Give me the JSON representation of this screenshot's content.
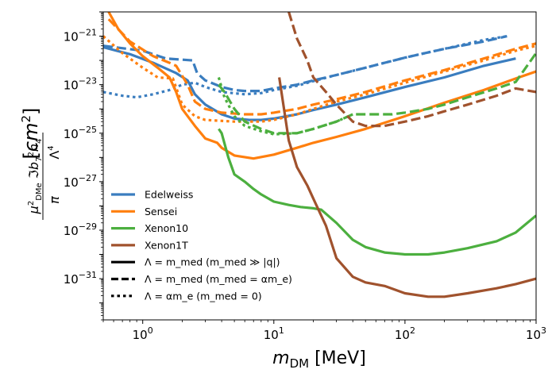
{
  "chart_data": {
    "type": "line",
    "xscale": "log",
    "yscale": "log",
    "xlim": [
      0.5,
      1000
    ],
    "ylim": [
      2e-33,
      1e-20
    ],
    "xlabel": "m_DM [MeV]",
    "ylabel": "μ²_DMe ℑb₇²h₄ / (π Λ⁴)  [cm²]",
    "x_tick_labels": [
      {
        "value": 1,
        "label": "10^0"
      },
      {
        "value": 10,
        "label": "10^1"
      },
      {
        "value": 100,
        "label": "10^2"
      },
      {
        "value": 1000,
        "label": "10^3"
      }
    ],
    "y_tick_labels": [
      {
        "value": 1e-21,
        "label": "10^-21"
      },
      {
        "value": 1e-23,
        "label": "10^-23"
      },
      {
        "value": 1e-25,
        "label": "10^-25"
      },
      {
        "value": 1e-27,
        "label": "10^-27"
      },
      {
        "value": 1e-29,
        "label": "10^-29"
      },
      {
        "value": 1e-31,
        "label": "10^-31"
      }
    ],
    "colors": {
      "Edelweiss": "#3a7dbf",
      "Sensei": "#ff7f0e",
      "Xenon10": "#4caf3f",
      "Xenon1T": "#a0522d"
    },
    "legend": {
      "placement": "lower-left",
      "experiments": [
        "Edelweiss",
        "Sensei",
        "Xenon10",
        "Xenon1T"
      ],
      "styles": [
        {
          "style": "solid",
          "label": "Λ = m_med (m_med ≫ |q|)"
        },
        {
          "style": "dashed",
          "label": "Λ = m_med (m_med = αm_e)"
        },
        {
          "style": "dotted",
          "label": "Λ = αm_e  (m_med = 0)"
        }
      ]
    },
    "series": [
      {
        "name": "Edelweiss",
        "style": "solid",
        "points": [
          [
            0.5,
            3.5e-22
          ],
          [
            0.8,
            1.8e-22
          ],
          [
            1.2,
            8e-23
          ],
          [
            1.8,
            3e-23
          ],
          [
            2.2,
            1.5e-23
          ],
          [
            2.5,
            4e-24
          ],
          [
            3,
            1.5e-24
          ],
          [
            4,
            6e-25
          ],
          [
            5,
            4e-25
          ],
          [
            6.5,
            3.5e-25
          ],
          [
            8,
            3.5e-25
          ],
          [
            10,
            4e-25
          ],
          [
            15,
            6e-25
          ],
          [
            20,
            9e-25
          ],
          [
            30,
            1.5e-24
          ],
          [
            50,
            3e-24
          ],
          [
            100,
            8e-24
          ],
          [
            200,
            2e-23
          ],
          [
            400,
            6e-23
          ],
          [
            700,
            1.2e-22
          ]
        ]
      },
      {
        "name": "Edelweiss",
        "style": "dashed",
        "points": [
          [
            0.5,
            4e-22
          ],
          [
            1,
            2.5e-22
          ],
          [
            1.5,
            1.2e-22
          ],
          [
            2.4,
            1e-22
          ],
          [
            2.6,
            3e-23
          ],
          [
            3,
            1.5e-23
          ],
          [
            4,
            8e-24
          ],
          [
            5,
            6e-24
          ],
          [
            6,
            5.5e-24
          ],
          [
            8,
            5.5e-24
          ],
          [
            10,
            7e-24
          ],
          [
            15,
            1e-23
          ],
          [
            20,
            1.5e-23
          ],
          [
            30,
            2.5e-23
          ],
          [
            50,
            5e-23
          ],
          [
            100,
            1.3e-22
          ],
          [
            200,
            3e-22
          ],
          [
            400,
            6e-22
          ],
          [
            600,
            1e-21
          ]
        ]
      },
      {
        "name": "Edelweiss",
        "style": "dotted",
        "points": [
          [
            0.5,
            5e-24
          ],
          [
            0.7,
            3.5e-24
          ],
          [
            0.9,
            3e-24
          ],
          [
            1.2,
            4e-24
          ],
          [
            1.6,
            6e-24
          ],
          [
            2,
            1e-23
          ],
          [
            2.5,
            1.2e-23
          ],
          [
            3,
            8e-24
          ],
          [
            4,
            5e-24
          ],
          [
            6,
            4e-24
          ],
          [
            8,
            4.5e-24
          ],
          [
            10,
            6e-24
          ],
          [
            15,
            9e-24
          ],
          [
            20,
            1.4e-23
          ],
          [
            30,
            2.5e-23
          ],
          [
            50,
            5e-23
          ],
          [
            100,
            1.3e-22
          ],
          [
            200,
            3e-22
          ],
          [
            400,
            7e-22
          ],
          [
            600,
            1e-21
          ]
        ]
      },
      {
        "name": "Sensei",
        "style": "solid",
        "points": [
          [
            0.55,
            1e-20
          ],
          [
            0.65,
            2e-21
          ],
          [
            0.8,
            5e-22
          ],
          [
            1.0,
            1.5e-22
          ],
          [
            1.3,
            5e-23
          ],
          [
            1.6,
            2e-23
          ],
          [
            1.8,
            5e-24
          ],
          [
            2,
            1e-24
          ],
          [
            2.5,
            2e-25
          ],
          [
            3,
            6e-26
          ],
          [
            3.7,
            4e-26
          ],
          [
            4,
            2.5e-26
          ],
          [
            5,
            1.2e-26
          ],
          [
            7,
            9e-27
          ],
          [
            10,
            1.3e-26
          ],
          [
            15,
            2.5e-26
          ],
          [
            20,
            4e-26
          ],
          [
            30,
            7e-26
          ],
          [
            50,
            1.5e-25
          ],
          [
            100,
            5e-25
          ],
          [
            200,
            1.8e-24
          ],
          [
            400,
            6e-24
          ],
          [
            700,
            1.8e-23
          ],
          [
            1000,
            3.5e-23
          ]
        ]
      },
      {
        "name": "Sensei",
        "style": "dashed",
        "points": [
          [
            0.55,
            5e-21
          ],
          [
            0.8,
            6e-22
          ],
          [
            1.2,
            1.5e-22
          ],
          [
            1.6,
            8e-23
          ],
          [
            1.8,
            6e-23
          ],
          [
            2.2,
            1e-23
          ],
          [
            2.5,
            2e-24
          ],
          [
            3,
            1e-24
          ],
          [
            4,
            7e-25
          ],
          [
            6,
            6e-25
          ],
          [
            8,
            6e-25
          ],
          [
            10,
            7e-25
          ],
          [
            15,
            1e-24
          ],
          [
            20,
            1.5e-24
          ],
          [
            30,
            2.5e-24
          ],
          [
            50,
            5e-24
          ],
          [
            100,
            1.5e-23
          ],
          [
            200,
            4e-23
          ],
          [
            400,
            1.2e-22
          ],
          [
            700,
            3e-22
          ],
          [
            1000,
            5e-22
          ]
        ]
      },
      {
        "name": "Sensei",
        "style": "dotted",
        "points": [
          [
            0.5,
            1e-21
          ],
          [
            0.7,
            2e-22
          ],
          [
            1,
            5e-23
          ],
          [
            1.3,
            2e-23
          ],
          [
            1.7,
            1.8e-23
          ],
          [
            2,
            1.5e-24
          ],
          [
            2.5,
            5e-25
          ],
          [
            3,
            3.5e-25
          ],
          [
            5,
            3e-25
          ],
          [
            8,
            3e-25
          ],
          [
            10,
            3.5e-25
          ],
          [
            15,
            6e-25
          ],
          [
            20,
            1e-24
          ],
          [
            30,
            2e-24
          ],
          [
            50,
            4e-24
          ],
          [
            100,
            1.2e-23
          ],
          [
            200,
            3.5e-23
          ],
          [
            400,
            1e-22
          ],
          [
            700,
            2.5e-22
          ],
          [
            1000,
            4e-22
          ]
        ]
      },
      {
        "name": "Xenon10",
        "style": "solid",
        "points": [
          [
            3.8,
            1.5e-25
          ],
          [
            4,
            1e-25
          ],
          [
            4.5,
            1e-26
          ],
          [
            5,
            2e-27
          ],
          [
            6,
            1e-27
          ],
          [
            7,
            5e-28
          ],
          [
            8,
            3e-28
          ],
          [
            10,
            1.5e-28
          ],
          [
            13,
            1.1e-28
          ],
          [
            16,
            9e-29
          ],
          [
            20,
            8e-29
          ],
          [
            23,
            7e-29
          ],
          [
            30,
            2e-29
          ],
          [
            40,
            4e-30
          ],
          [
            50,
            2e-30
          ],
          [
            70,
            1.2e-30
          ],
          [
            100,
            1e-30
          ],
          [
            150,
            1e-30
          ],
          [
            200,
            1.2e-30
          ],
          [
            300,
            1.8e-30
          ],
          [
            500,
            3.5e-30
          ],
          [
            700,
            8e-30
          ],
          [
            1000,
            4e-29
          ]
        ]
      },
      {
        "name": "Xenon10",
        "style": "dashed",
        "points": [
          [
            3.8,
            1e-23
          ],
          [
            4.2,
            5e-24
          ],
          [
            5,
            1e-24
          ],
          [
            6,
            3e-25
          ],
          [
            8,
            1.5e-25
          ],
          [
            10,
            1e-25
          ],
          [
            15,
            1e-25
          ],
          [
            20,
            1.5e-25
          ],
          [
            30,
            3e-25
          ],
          [
            40,
            6e-25
          ],
          [
            60,
            6e-25
          ],
          [
            80,
            6e-25
          ],
          [
            100,
            7e-25
          ],
          [
            150,
            1e-24
          ],
          [
            200,
            1.5e-24
          ],
          [
            300,
            3e-24
          ],
          [
            500,
            7e-24
          ],
          [
            700,
            1.3e-23
          ],
          [
            1000,
            2e-22
          ]
        ]
      },
      {
        "name": "Xenon10",
        "style": "dotted",
        "points": [
          [
            3.8,
            2e-23
          ],
          [
            4.2,
            3e-24
          ],
          [
            5,
            5e-25
          ],
          [
            6,
            2e-25
          ],
          [
            8,
            1.2e-25
          ],
          [
            10,
            9e-26
          ],
          [
            15,
            1e-25
          ],
          [
            20,
            1.5e-25
          ],
          [
            30,
            3e-25
          ],
          [
            40,
            6e-25
          ]
        ]
      },
      {
        "name": "Xenon1T",
        "style": "solid",
        "points": [
          [
            11,
            2e-23
          ],
          [
            13,
            5e-26
          ],
          [
            15,
            4e-27
          ],
          [
            18,
            7e-28
          ],
          [
            20,
            2e-28
          ],
          [
            25,
            1.5e-29
          ],
          [
            30,
            7e-31
          ],
          [
            40,
            1.2e-31
          ],
          [
            50,
            7e-32
          ],
          [
            70,
            5e-32
          ],
          [
            100,
            2.5e-32
          ],
          [
            150,
            1.8e-32
          ],
          [
            200,
            1.8e-32
          ],
          [
            300,
            2.5e-32
          ],
          [
            500,
            4e-32
          ],
          [
            700,
            6e-32
          ],
          [
            1000,
            1e-31
          ]
        ]
      },
      {
        "name": "Xenon1T",
        "style": "dashed",
        "points": [
          [
            13,
            1e-20
          ],
          [
            15,
            8e-22
          ],
          [
            18,
            1e-22
          ],
          [
            20,
            2e-23
          ],
          [
            25,
            5e-24
          ],
          [
            30,
            1.5e-24
          ],
          [
            40,
            3e-25
          ],
          [
            50,
            2e-25
          ],
          [
            70,
            2e-25
          ],
          [
            100,
            3e-25
          ],
          [
            150,
            5e-25
          ],
          [
            200,
            8e-25
          ],
          [
            300,
            1.5e-24
          ],
          [
            500,
            3.5e-24
          ],
          [
            700,
            7e-24
          ],
          [
            1000,
            5e-24
          ]
        ]
      }
    ]
  }
}
